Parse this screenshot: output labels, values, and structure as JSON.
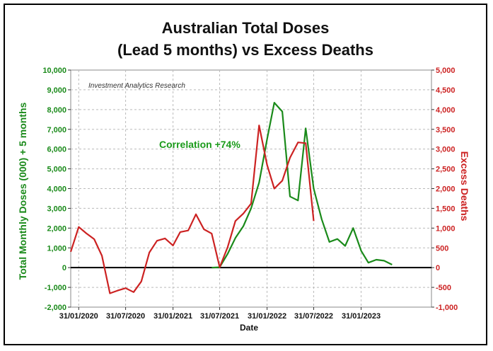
{
  "chart_data": {
    "type": "line",
    "title": [
      "Australian Total Doses",
      "(Lead 5 months) vs Excess Deaths"
    ],
    "xlabel": "Date",
    "ylabel_left": "Total Monthly Doses (000) + 5 months",
    "ylabel_right": "Excess Deaths",
    "annotations": {
      "source": "Investment Analytics Research",
      "correlation": "Correlation +74%"
    },
    "x_ticks": [
      "31/01/2020",
      "31/07/2020",
      "31/01/2021",
      "31/07/2021",
      "31/01/2022",
      "31/07/2022",
      "31/01/2023"
    ],
    "x_range": [
      "2019-12-31",
      "2023-10-31"
    ],
    "ylim_left": [
      -2000,
      10000
    ],
    "ylim_right": [
      -1000,
      5000
    ],
    "yticks_left": [
      "-2,000",
      "-1,000",
      "0",
      "1,000",
      "2,000",
      "3,000",
      "4,000",
      "5,000",
      "6,000",
      "7,000",
      "8,000",
      "9,000",
      "10,000"
    ],
    "yticks_right": [
      "-1,000",
      "-500",
      "0",
      "500",
      "1,000",
      "1,500",
      "2,000",
      "2,500",
      "3,000",
      "3,500",
      "4,000",
      "4,500",
      "5,000"
    ],
    "grid": true,
    "zero_line": true,
    "series": [
      {
        "axis": "left",
        "color": "#1a8a1a",
        "points": [
          [
            "2021-06-30",
            0
          ],
          [
            "2021-07-31",
            20
          ],
          [
            "2021-08-31",
            700
          ],
          [
            "2021-09-30",
            1500
          ],
          [
            "2021-10-31",
            2100
          ],
          [
            "2021-11-30",
            3000
          ],
          [
            "2021-12-31",
            4300
          ],
          [
            "2022-01-31",
            6500
          ],
          [
            "2022-02-28",
            8350
          ],
          [
            "2022-03-31",
            7900
          ],
          [
            "2022-04-30",
            3600
          ],
          [
            "2022-05-31",
            3400
          ],
          [
            "2022-06-30",
            7050
          ],
          [
            "2022-07-31",
            4000
          ],
          [
            "2022-08-31",
            2450
          ],
          [
            "2022-09-30",
            1300
          ],
          [
            "2022-10-31",
            1450
          ],
          [
            "2022-11-30",
            1100
          ],
          [
            "2022-12-31",
            2000
          ],
          [
            "2023-01-31",
            850
          ],
          [
            "2023-02-28",
            250
          ],
          [
            "2023-03-31",
            400
          ],
          [
            "2023-04-30",
            350
          ],
          [
            "2023-05-31",
            150
          ]
        ]
      },
      {
        "axis": "right",
        "color": "#cc2222",
        "points": [
          [
            "2019-12-31",
            400
          ],
          [
            "2020-01-31",
            1030
          ],
          [
            "2020-02-29",
            870
          ],
          [
            "2020-03-31",
            720
          ],
          [
            "2020-04-30",
            300
          ],
          [
            "2020-05-31",
            -650
          ],
          [
            "2020-06-30",
            -580
          ],
          [
            "2020-07-31",
            -520
          ],
          [
            "2020-08-31",
            -620
          ],
          [
            "2020-09-30",
            -350
          ],
          [
            "2020-10-31",
            380
          ],
          [
            "2020-11-30",
            680
          ],
          [
            "2020-12-31",
            740
          ],
          [
            "2021-01-31",
            560
          ],
          [
            "2021-02-28",
            900
          ],
          [
            "2021-03-31",
            940
          ],
          [
            "2021-04-30",
            1350
          ],
          [
            "2021-05-31",
            970
          ],
          [
            "2021-06-30",
            860
          ],
          [
            "2021-07-31",
            10
          ],
          [
            "2021-08-31",
            520
          ],
          [
            "2021-09-30",
            1180
          ],
          [
            "2021-10-31",
            1370
          ],
          [
            "2021-11-30",
            1620
          ],
          [
            "2021-12-31",
            3600
          ],
          [
            "2022-01-31",
            2600
          ],
          [
            "2022-02-28",
            2000
          ],
          [
            "2022-03-31",
            2200
          ],
          [
            "2022-04-30",
            2780
          ],
          [
            "2022-05-31",
            3170
          ],
          [
            "2022-06-30",
            3150
          ],
          [
            "2022-07-31",
            1180
          ]
        ]
      }
    ]
  }
}
